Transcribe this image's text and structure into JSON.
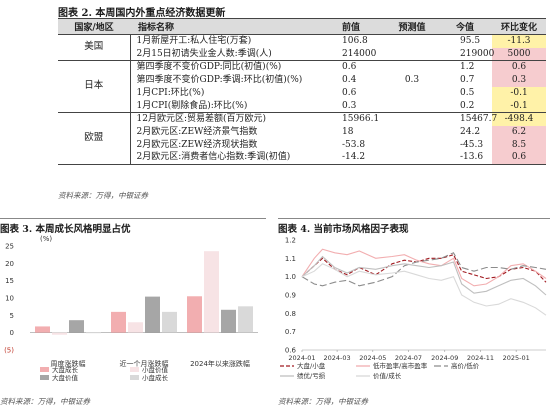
{
  "table": {
    "title": "图表 2. 本周国内外重点经济数据更新",
    "headers": {
      "region": "国家/地区",
      "indicator": "指标名称",
      "previous": "前值",
      "forecast": "预测值",
      "current": "今值",
      "change": "环比变化"
    },
    "groups": [
      {
        "region": "美国",
        "rows": [
          {
            "indicator": "1月新屋开工:私人住宅(万套)",
            "previous": "106.8",
            "forecast": "",
            "current": "95.5",
            "change": "-11.3",
            "change_color": "#fff2a8"
          },
          {
            "indicator": "2月15日初请失业金人数:季调(人)",
            "previous": "214000",
            "forecast": "",
            "current": "219000",
            "change": "5000",
            "change_color": "#f6cccf"
          }
        ]
      },
      {
        "region": "日本",
        "rows": [
          {
            "indicator": "第四季度不变价GDP:同比(初值)(%)",
            "previous": "0.6",
            "forecast": "",
            "current": "1.2",
            "change": "0.6",
            "change_color": "#f6cccf"
          },
          {
            "indicator": "第四季度不变价GDP:季调:环比(初值)(%)",
            "previous": "0.4",
            "forecast": "0.3",
            "current": "0.7",
            "change": "0.3",
            "change_color": "#f6cccf"
          },
          {
            "indicator": "1月CPI:环比(%)",
            "previous": "0.6",
            "forecast": "",
            "current": "0.5",
            "change": "-0.1",
            "change_color": "#fff2a8"
          },
          {
            "indicator": "1月CPI(剔除食品):环比(%)",
            "previous": "0.3",
            "forecast": "",
            "current": "0.2",
            "change": "-0.1",
            "change_color": "#fff2a8"
          }
        ]
      },
      {
        "region": "欧盟",
        "rows": [
          {
            "indicator": "12月欧元区:贸易差额(百万欧元)",
            "previous": "15966.1",
            "forecast": "",
            "current": "15467.7",
            "change": "-498.4",
            "change_color": "#fff2a8"
          },
          {
            "indicator": "2月欧元区:ZEW经济景气指数",
            "previous": "18",
            "forecast": "",
            "current": "24.2",
            "change": "6.2",
            "change_color": "#f6cccf"
          },
          {
            "indicator": "2月欧元区:ZEW经济现状指数",
            "previous": "-53.8",
            "forecast": "",
            "current": "-45.3",
            "change": "8.5",
            "change_color": "#f6cccf"
          },
          {
            "indicator": "2月欧元区:消费者信心指数:季调(初值)",
            "previous": "-14.2",
            "forecast": "",
            "current": "-13.6",
            "change": "0.6",
            "change_color": "#f6cccf"
          }
        ]
      }
    ],
    "source": "资料来源：万得，中银证券"
  },
  "fig3": {
    "title": "图表 3. 本周成长风格明显占优",
    "source": "资料来源：万得，中银证券",
    "chart_data": {
      "type": "bar",
      "ylabel": "(%)",
      "ylim": [
        -5,
        25
      ],
      "yticks": [
        25,
        20,
        15,
        10,
        5,
        0,
        -5
      ],
      "ytick_labels": [
        "25",
        "20",
        "15",
        "10",
        "5",
        "0",
        "(5)"
      ],
      "categories": [
        "周度涨跌幅",
        "近一个月涨跌幅",
        "2024年以来涨跌幅"
      ],
      "series": [
        {
          "name": "大盘成长",
          "color": "#f2aeb0",
          "values": [
            1.8,
            6.0,
            10.5
          ]
        },
        {
          "name": "小盘价值",
          "color": "#f7e3e5",
          "values": [
            -0.6,
            3.0,
            23.5
          ]
        },
        {
          "name": "大盘价值",
          "color": "#a6a6a6",
          "values": [
            3.6,
            10.4,
            6.6
          ]
        },
        {
          "name": "小盘成长",
          "color": "#d9d9d9",
          "values": [
            0.0,
            6.0,
            7.6
          ]
        }
      ],
      "legend_position": "bottom"
    }
  },
  "fig4": {
    "title": "图表 4. 当前市场风格因子表现",
    "source": "资料来源：万得，中银证券",
    "chart_data": {
      "type": "line",
      "ylim": [
        0.6,
        1.2
      ],
      "yticks": [
        0.6,
        0.7,
        0.8,
        0.9,
        1.0,
        1.1,
        1.2
      ],
      "ytick_labels": [
        "0.6",
        "0.7",
        "0.8",
        "0.9",
        "1.0",
        "1.1",
        "1.2"
      ],
      "x_tick_labels": [
        "2024-01",
        "2024-03",
        "2024-05",
        "2024-07",
        "2024-09",
        "2024-11",
        "2025-01"
      ],
      "x_start": "2024-01-01",
      "x_end": "2025-02-21",
      "series": [
        {
          "name": "大盘/小盘",
          "color": "#a11a20",
          "dash": "4,2",
          "x": [
            "2024-01-01",
            "2024-01-22",
            "2024-02-05",
            "2024-02-26",
            "2024-03-18",
            "2024-04-08",
            "2024-05-06",
            "2024-06-03",
            "2024-06-24",
            "2024-07-15",
            "2024-08-05",
            "2024-08-26",
            "2024-09-16",
            "2024-09-30",
            "2024-10-21",
            "2024-11-11",
            "2024-12-02",
            "2024-12-23",
            "2025-01-13",
            "2025-02-03",
            "2025-02-21"
          ],
          "y": [
            1.0,
            1.06,
            1.1,
            1.04,
            1.01,
            1.05,
            1.01,
            1.07,
            1.09,
            1.08,
            1.1,
            1.1,
            1.12,
            1.03,
            1.01,
            0.99,
            1.0,
            1.04,
            1.05,
            1.03,
            0.97
          ]
        },
        {
          "name": "低市盈率/高市盈率",
          "color": "#f2aeb0",
          "dash": "",
          "x": [
            "2024-01-01",
            "2024-01-22",
            "2024-02-05",
            "2024-02-26",
            "2024-03-18",
            "2024-04-08",
            "2024-05-06",
            "2024-06-03",
            "2024-06-24",
            "2024-07-15",
            "2024-08-05",
            "2024-08-26",
            "2024-09-16",
            "2024-09-30",
            "2024-10-21",
            "2024-11-11",
            "2024-12-02",
            "2024-12-23",
            "2025-01-13",
            "2025-02-03",
            "2025-02-21"
          ],
          "y": [
            1.0,
            1.1,
            1.15,
            1.13,
            1.12,
            1.14,
            1.1,
            1.11,
            1.12,
            1.09,
            1.07,
            1.06,
            1.1,
            0.99,
            0.95,
            0.96,
            1.0,
            1.06,
            1.07,
            1.03,
            0.99
          ]
        },
        {
          "name": "高价/低价",
          "color": "#8c8c8c",
          "dash": "7,3",
          "x": [
            "2024-01-01",
            "2024-01-22",
            "2024-02-05",
            "2024-02-26",
            "2024-03-18",
            "2024-04-08",
            "2024-05-06",
            "2024-06-03",
            "2024-06-24",
            "2024-07-15",
            "2024-08-05",
            "2024-08-26",
            "2024-09-16",
            "2024-09-30",
            "2024-10-21",
            "2024-11-11",
            "2024-12-02",
            "2024-12-23",
            "2025-01-13",
            "2025-02-03",
            "2025-02-21"
          ],
          "y": [
            1.0,
            0.96,
            0.95,
            0.97,
            0.98,
            0.95,
            0.97,
            1.0,
            1.06,
            1.08,
            1.09,
            1.1,
            1.13,
            1.05,
            1.03,
            1.05,
            1.05,
            1.04,
            1.06,
            1.05,
            1.04
          ]
        },
        {
          "name": "绩优/亏损",
          "color": "#bfbfbf",
          "dash": "",
          "x": [
            "2024-01-01",
            "2024-01-22",
            "2024-02-05",
            "2024-02-26",
            "2024-03-18",
            "2024-04-08",
            "2024-05-06",
            "2024-06-03",
            "2024-06-24",
            "2024-07-15",
            "2024-08-05",
            "2024-08-26",
            "2024-09-16",
            "2024-09-30",
            "2024-10-21",
            "2024-11-11",
            "2024-12-02",
            "2024-12-23",
            "2025-01-13",
            "2025-02-03",
            "2025-02-21"
          ],
          "y": [
            1.0,
            1.06,
            1.11,
            1.05,
            1.02,
            1.05,
            1.04,
            1.06,
            1.07,
            1.06,
            1.05,
            1.06,
            1.08,
            0.96,
            0.91,
            0.92,
            0.95,
            0.98,
            0.99,
            0.95,
            0.9
          ]
        },
        {
          "name": "价值/成长",
          "color": "#d9d9d9",
          "dash": "",
          "x": [
            "2024-01-01",
            "2024-01-22",
            "2024-02-05",
            "2024-02-26",
            "2024-03-18",
            "2024-04-08",
            "2024-05-06",
            "2024-06-03",
            "2024-06-24",
            "2024-07-15",
            "2024-08-05",
            "2024-08-26",
            "2024-09-16",
            "2024-09-30",
            "2024-10-21",
            "2024-11-11",
            "2024-12-02",
            "2024-12-23",
            "2025-01-13",
            "2025-02-03",
            "2025-02-21"
          ],
          "y": [
            1.0,
            1.03,
            1.07,
            1.04,
            1.0,
            1.03,
            1.01,
            1.02,
            1.03,
            1.01,
            0.99,
            0.98,
            1.0,
            0.9,
            0.86,
            0.84,
            0.85,
            0.88,
            0.86,
            0.83,
            0.79
          ]
        }
      ],
      "legend_position": "bottom"
    }
  }
}
